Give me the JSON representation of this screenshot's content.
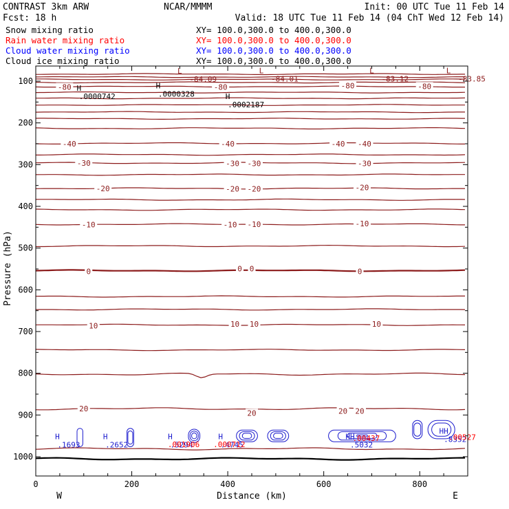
{
  "header": {
    "experiment": "CONTRAST  3km ARW",
    "center": "NCAR/MMMM",
    "init": "Init: 00 UTC Tue 11 Feb 14",
    "forecast": "Fcst:   18 h",
    "valid": "Valid: 18 UTC Tue 11 Feb 14 (04 ChT Wed 12 Feb 14)"
  },
  "fields": [
    {
      "label": "Snow mixing ratio",
      "xy": "XY= 100.0,300.0 to 400.0,300.0",
      "color": "#000000"
    },
    {
      "label": "Rain water mixing ratio",
      "xy": "XY= 100.0,300.0 to 400.0,300.0",
      "color": "#ff0000"
    },
    {
      "label": "Cloud water mixing ratio",
      "xy": "XY= 100.0,300.0 to 400.0,300.0",
      "color": "#0000ff"
    },
    {
      "label": "Cloud ice mixing ratio",
      "xy": "XY= 100.0,300.0 to 400.0,300.0",
      "color": "#000000"
    }
  ],
  "colors": {
    "temperature": "#8b1a1a",
    "cloud_water": "#1a1acd",
    "rain": "#ff0000",
    "axis": "#000000"
  },
  "chart_data": {
    "type": "contour-cross-section",
    "xlabel": "Distance (km)",
    "ylabel": "Pressure (hPa)",
    "xlim": [
      0,
      900
    ],
    "ylim": [
      1040,
      70
    ],
    "x_ticks": [
      0,
      200,
      400,
      600,
      800
    ],
    "y_ticks": [
      100,
      200,
      300,
      400,
      500,
      600,
      700,
      800,
      900,
      1000
    ],
    "x_end_labels": {
      "left": "W",
      "right": "E"
    },
    "temperature_contours": [
      {
        "p": 83,
        "label": ""
      },
      {
        "p": 90,
        "label": ""
      },
      {
        "p": 96,
        "label": ""
      },
      {
        "p": 103,
        "label": ""
      },
      {
        "p": 113,
        "label": "-80"
      },
      {
        "p": 127,
        "label": ""
      },
      {
        "p": 141,
        "label": ""
      },
      {
        "p": 157,
        "label": ""
      },
      {
        "p": 174,
        "label": ""
      },
      {
        "p": 190,
        "label": ""
      },
      {
        "p": 213,
        "label": ""
      },
      {
        "p": 249,
        "label": "-40"
      },
      {
        "p": 276,
        "label": ""
      },
      {
        "p": 296,
        "label": "-30"
      },
      {
        "p": 324,
        "label": ""
      },
      {
        "p": 357,
        "label": "-20"
      },
      {
        "p": 384,
        "label": ""
      },
      {
        "p": 408,
        "label": ""
      },
      {
        "p": 443,
        "label": "-10"
      },
      {
        "p": 495,
        "label": ""
      },
      {
        "p": 554,
        "label": "0"
      },
      {
        "p": 616,
        "label": ""
      },
      {
        "p": 647,
        "label": ""
      },
      {
        "p": 684,
        "label": "10"
      },
      {
        "p": 744,
        "label": ""
      },
      {
        "p": 802,
        "label": ""
      },
      {
        "p": 885,
        "label": "20"
      },
      {
        "p": 981,
        "label": ""
      },
      {
        "p": 1005,
        "label": ""
      }
    ],
    "contour_labels": [
      {
        "x": 60,
        "p": 114,
        "text": "-80"
      },
      {
        "x": 385,
        "p": 114,
        "text": "-80"
      },
      {
        "x": 650,
        "p": 111,
        "text": "-80"
      },
      {
        "x": 810,
        "p": 112,
        "text": "-80"
      },
      {
        "x": 70,
        "p": 250,
        "text": "-40"
      },
      {
        "x": 400,
        "p": 250,
        "text": "-40"
      },
      {
        "x": 630,
        "p": 250,
        "text": "-40"
      },
      {
        "x": 685,
        "p": 250,
        "text": "-40"
      },
      {
        "x": 100,
        "p": 296,
        "text": "-30"
      },
      {
        "x": 410,
        "p": 297,
        "text": "-30"
      },
      {
        "x": 455,
        "p": 297,
        "text": "-30"
      },
      {
        "x": 685,
        "p": 297,
        "text": "-30"
      },
      {
        "x": 140,
        "p": 357,
        "text": "-20"
      },
      {
        "x": 410,
        "p": 358,
        "text": "-20"
      },
      {
        "x": 455,
        "p": 358,
        "text": "-20"
      },
      {
        "x": 680,
        "p": 355,
        "text": "-20"
      },
      {
        "x": 110,
        "p": 444,
        "text": "-10"
      },
      {
        "x": 405,
        "p": 444,
        "text": "-10"
      },
      {
        "x": 455,
        "p": 443,
        "text": "-10"
      },
      {
        "x": 680,
        "p": 441,
        "text": "-10"
      },
      {
        "x": 110,
        "p": 556,
        "text": "0"
      },
      {
        "x": 425,
        "p": 549,
        "text": "0"
      },
      {
        "x": 450,
        "p": 549,
        "text": "0"
      },
      {
        "x": 675,
        "p": 556,
        "text": "0"
      },
      {
        "x": 120,
        "p": 686,
        "text": "10"
      },
      {
        "x": 415,
        "p": 682,
        "text": "10"
      },
      {
        "x": 455,
        "p": 682,
        "text": "10"
      },
      {
        "x": 710,
        "p": 682,
        "text": "10"
      },
      {
        "x": 100,
        "p": 885,
        "text": "20"
      },
      {
        "x": 450,
        "p": 895,
        "text": "20"
      },
      {
        "x": 640,
        "p": 890,
        "text": "20"
      },
      {
        "x": 675,
        "p": 890,
        "text": "20"
      }
    ],
    "extrema": [
      {
        "x": 300,
        "p": 82,
        "marker": "L",
        "value": "-84.09",
        "color": "#8b1a1a"
      },
      {
        "x": 470,
        "p": 81,
        "marker": "L",
        "value": "-84.01",
        "color": "#8b1a1a"
      },
      {
        "x": 700,
        "p": 81,
        "marker": "L",
        "value": "-83.12",
        "color": "#8b1a1a"
      },
      {
        "x": 860,
        "p": 81,
        "marker": "L",
        "value": "-83.85",
        "color": "#8b1a1a"
      },
      {
        "x": 90,
        "p": 123,
        "marker": "H",
        "value": ".0000742",
        "color": "#000000"
      },
      {
        "x": 255,
        "p": 117,
        "marker": "H",
        "value": ".0000328",
        "color": "#000000"
      },
      {
        "x": 400,
        "p": 143,
        "marker": "H",
        "value": ".0002187",
        "color": "#000000"
      },
      {
        "x": 45,
        "p": 958,
        "marker": "H",
        "value": ".1693",
        "color": "#1a1acd"
      },
      {
        "x": 145,
        "p": 958,
        "marker": "H",
        "value": ".2652",
        "color": "#1a1acd"
      },
      {
        "x": 280,
        "p": 958,
        "marker": "H",
        "value": ".5294",
        "color": "#1a1acd"
      },
      {
        "x": 385,
        "p": 958,
        "marker": "H",
        "value": ".4745",
        "color": "#1a1acd"
      },
      {
        "x": 655,
        "p": 958,
        "marker": "HH",
        "value": ".5032",
        "color": "#1a1acd"
      },
      {
        "x": 850,
        "p": 945,
        "marker": "HH",
        "value": ".8352",
        "color": "#1a1acd"
      },
      {
        "x": 275,
        "p": 977,
        "marker": "",
        "value": ".001906",
        "color": "#ff0000"
      },
      {
        "x": 370,
        "p": 977,
        "marker": "",
        "value": ".000712",
        "color": "#ff0000"
      },
      {
        "x": 660,
        "p": 962,
        "marker": "",
        "value": ".00437",
        "color": "#ff0000"
      },
      {
        "x": 860,
        "p": 960,
        "marker": "",
        "value": ".00527",
        "color": "#ff0000"
      }
    ]
  }
}
